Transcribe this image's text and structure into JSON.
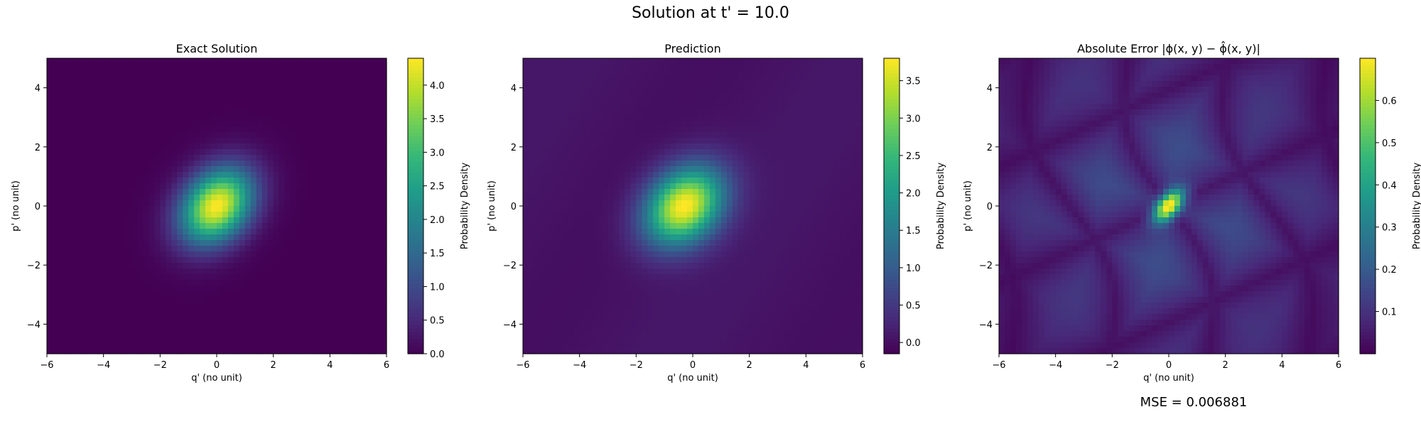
{
  "figure": {
    "title": "Solution at t' = 10.0",
    "mse_label": "MSE = 0.006881"
  },
  "colormap": "viridis",
  "colors": {
    "viridis": [
      "#440154",
      "#482878",
      "#3e4989",
      "#31688e",
      "#26828e",
      "#1f9e89",
      "#35b779",
      "#6ece58",
      "#b5de2b",
      "#fde725"
    ]
  },
  "chart_data": [
    {
      "type": "heatmap",
      "title": "Exact Solution",
      "xlabel": "q' (no unit)",
      "ylabel": "p' (no unit)",
      "xlim": [
        -6,
        6
      ],
      "ylim": [
        -5,
        5
      ],
      "xticks": [
        "−6",
        "−4",
        "−2",
        "0",
        "2",
        "4",
        "6"
      ],
      "yticks": [
        "−4",
        "−2",
        "0",
        "2",
        "4"
      ],
      "xtick_values": [
        -6,
        -4,
        -2,
        0,
        2,
        4,
        6
      ],
      "ytick_values": [
        -4,
        -2,
        0,
        2,
        4
      ],
      "colorbar": {
        "label": "Probability Density",
        "range": [
          0.0,
          4.4
        ],
        "ticks": [
          "0.0",
          "0.5",
          "1.0",
          "1.5",
          "2.0",
          "2.5",
          "3.0",
          "3.5",
          "4.0"
        ],
        "tick_values": [
          0.0,
          0.5,
          1.0,
          1.5,
          2.0,
          2.5,
          3.0,
          3.5,
          4.0
        ]
      },
      "field": {
        "kind": "gaussian",
        "peak": 4.4,
        "center": [
          0.0,
          0.0
        ],
        "sigma_major": 1.0,
        "sigma_minor": 0.75,
        "tilt_deg": 45,
        "background": 0.0
      }
    },
    {
      "type": "heatmap",
      "title": "Prediction",
      "xlabel": "q' (no unit)",
      "ylabel": "p' (no unit)",
      "xlim": [
        -6,
        6
      ],
      "ylim": [
        -5,
        5
      ],
      "xticks": [
        "−6",
        "−4",
        "−2",
        "0",
        "2",
        "4",
        "6"
      ],
      "yticks": [
        "−4",
        "−2",
        "0",
        "2",
        "4"
      ],
      "xtick_values": [
        -6,
        -4,
        -2,
        0,
        2,
        4,
        6
      ],
      "ytick_values": [
        -4,
        -2,
        0,
        2,
        4
      ],
      "colorbar": {
        "label": "Probability Density",
        "range": [
          -0.15,
          3.8
        ],
        "ticks": [
          "0.0",
          "0.5",
          "1.0",
          "1.5",
          "2.0",
          "2.5",
          "3.0",
          "3.5"
        ],
        "tick_values": [
          0.0,
          0.5,
          1.0,
          1.5,
          2.0,
          2.5,
          3.0,
          3.5
        ]
      },
      "field": {
        "kind": "gaussian",
        "peak": 3.8,
        "center": [
          -0.3,
          0.0
        ],
        "sigma_major": 1.05,
        "sigma_minor": 0.8,
        "tilt_deg": 40,
        "background": 0.1
      }
    },
    {
      "type": "heatmap",
      "title": "Absolute Error |ϕ(x, y) − ϕ̂(x, y)|",
      "xlabel": "q' (no unit)",
      "ylabel": "p' (no unit)",
      "xlim": [
        -6,
        6
      ],
      "ylim": [
        -5,
        5
      ],
      "xticks": [
        "−6",
        "−4",
        "−2",
        "0",
        "2",
        "4",
        "6"
      ],
      "yticks": [
        "−4",
        "−2",
        "0",
        "2",
        "4"
      ],
      "xtick_values": [
        -6,
        -4,
        -2,
        0,
        2,
        4,
        6
      ],
      "ytick_values": [
        -4,
        -2,
        0,
        2,
        4
      ],
      "colorbar": {
        "label": "Probability Density",
        "range": [
          0.0,
          0.7
        ],
        "ticks": [
          "0.1",
          "0.2",
          "0.3",
          "0.4",
          "0.5",
          "0.6"
        ],
        "tick_values": [
          0.1,
          0.2,
          0.3,
          0.4,
          0.5,
          0.6
        ]
      },
      "field": {
        "kind": "error",
        "peak": 0.7,
        "center": [
          0.0,
          0.0
        ],
        "sigma_major": 0.45,
        "sigma_minor": 0.25,
        "tilt_deg": 45,
        "background": 0.18
      }
    }
  ]
}
